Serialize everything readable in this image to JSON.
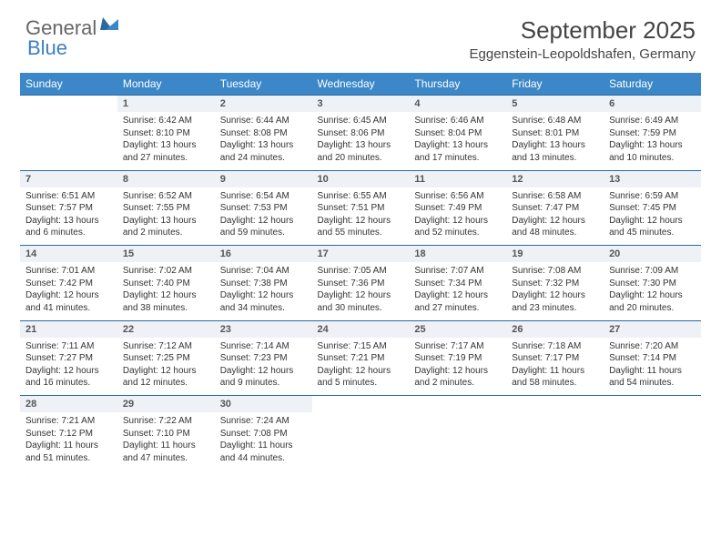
{
  "logo": {
    "word1": "General",
    "word2": "Blue"
  },
  "title": "September 2025",
  "location": "Eggenstein-Leopoldshafen, Germany",
  "colors": {
    "header_bg": "#3b87c8",
    "header_text": "#ffffff",
    "daynum_bg": "#eef2f6",
    "daynum_border": "#2a6aa0",
    "body_text": "#333333",
    "logo_gray": "#666666",
    "logo_blue": "#3b7fc4"
  },
  "day_headers": [
    "Sunday",
    "Monday",
    "Tuesday",
    "Wednesday",
    "Thursday",
    "Friday",
    "Saturday"
  ],
  "weeks": [
    {
      "nums": [
        "",
        "1",
        "2",
        "3",
        "4",
        "5",
        "6"
      ],
      "cells": [
        null,
        {
          "sunrise": "6:42 AM",
          "sunset": "8:10 PM",
          "daylight": "13 hours and 27 minutes."
        },
        {
          "sunrise": "6:44 AM",
          "sunset": "8:08 PM",
          "daylight": "13 hours and 24 minutes."
        },
        {
          "sunrise": "6:45 AM",
          "sunset": "8:06 PM",
          "daylight": "13 hours and 20 minutes."
        },
        {
          "sunrise": "6:46 AM",
          "sunset": "8:04 PM",
          "daylight": "13 hours and 17 minutes."
        },
        {
          "sunrise": "6:48 AM",
          "sunset": "8:01 PM",
          "daylight": "13 hours and 13 minutes."
        },
        {
          "sunrise": "6:49 AM",
          "sunset": "7:59 PM",
          "daylight": "13 hours and 10 minutes."
        }
      ]
    },
    {
      "nums": [
        "7",
        "8",
        "9",
        "10",
        "11",
        "12",
        "13"
      ],
      "cells": [
        {
          "sunrise": "6:51 AM",
          "sunset": "7:57 PM",
          "daylight": "13 hours and 6 minutes."
        },
        {
          "sunrise": "6:52 AM",
          "sunset": "7:55 PM",
          "daylight": "13 hours and 2 minutes."
        },
        {
          "sunrise": "6:54 AM",
          "sunset": "7:53 PM",
          "daylight": "12 hours and 59 minutes."
        },
        {
          "sunrise": "6:55 AM",
          "sunset": "7:51 PM",
          "daylight": "12 hours and 55 minutes."
        },
        {
          "sunrise": "6:56 AM",
          "sunset": "7:49 PM",
          "daylight": "12 hours and 52 minutes."
        },
        {
          "sunrise": "6:58 AM",
          "sunset": "7:47 PM",
          "daylight": "12 hours and 48 minutes."
        },
        {
          "sunrise": "6:59 AM",
          "sunset": "7:45 PM",
          "daylight": "12 hours and 45 minutes."
        }
      ]
    },
    {
      "nums": [
        "14",
        "15",
        "16",
        "17",
        "18",
        "19",
        "20"
      ],
      "cells": [
        {
          "sunrise": "7:01 AM",
          "sunset": "7:42 PM",
          "daylight": "12 hours and 41 minutes."
        },
        {
          "sunrise": "7:02 AM",
          "sunset": "7:40 PM",
          "daylight": "12 hours and 38 minutes."
        },
        {
          "sunrise": "7:04 AM",
          "sunset": "7:38 PM",
          "daylight": "12 hours and 34 minutes."
        },
        {
          "sunrise": "7:05 AM",
          "sunset": "7:36 PM",
          "daylight": "12 hours and 30 minutes."
        },
        {
          "sunrise": "7:07 AM",
          "sunset": "7:34 PM",
          "daylight": "12 hours and 27 minutes."
        },
        {
          "sunrise": "7:08 AM",
          "sunset": "7:32 PM",
          "daylight": "12 hours and 23 minutes."
        },
        {
          "sunrise": "7:09 AM",
          "sunset": "7:30 PM",
          "daylight": "12 hours and 20 minutes."
        }
      ]
    },
    {
      "nums": [
        "21",
        "22",
        "23",
        "24",
        "25",
        "26",
        "27"
      ],
      "cells": [
        {
          "sunrise": "7:11 AM",
          "sunset": "7:27 PM",
          "daylight": "12 hours and 16 minutes."
        },
        {
          "sunrise": "7:12 AM",
          "sunset": "7:25 PM",
          "daylight": "12 hours and 12 minutes."
        },
        {
          "sunrise": "7:14 AM",
          "sunset": "7:23 PM",
          "daylight": "12 hours and 9 minutes."
        },
        {
          "sunrise": "7:15 AM",
          "sunset": "7:21 PM",
          "daylight": "12 hours and 5 minutes."
        },
        {
          "sunrise": "7:17 AM",
          "sunset": "7:19 PM",
          "daylight": "12 hours and 2 minutes."
        },
        {
          "sunrise": "7:18 AM",
          "sunset": "7:17 PM",
          "daylight": "11 hours and 58 minutes."
        },
        {
          "sunrise": "7:20 AM",
          "sunset": "7:14 PM",
          "daylight": "11 hours and 54 minutes."
        }
      ]
    },
    {
      "nums": [
        "28",
        "29",
        "30",
        "",
        "",
        "",
        ""
      ],
      "cells": [
        {
          "sunrise": "7:21 AM",
          "sunset": "7:12 PM",
          "daylight": "11 hours and 51 minutes."
        },
        {
          "sunrise": "7:22 AM",
          "sunset": "7:10 PM",
          "daylight": "11 hours and 47 minutes."
        },
        {
          "sunrise": "7:24 AM",
          "sunset": "7:08 PM",
          "daylight": "11 hours and 44 minutes."
        },
        null,
        null,
        null,
        null
      ]
    }
  ],
  "labels": {
    "sunrise": "Sunrise: ",
    "sunset": "Sunset: ",
    "daylight": "Daylight: "
  }
}
